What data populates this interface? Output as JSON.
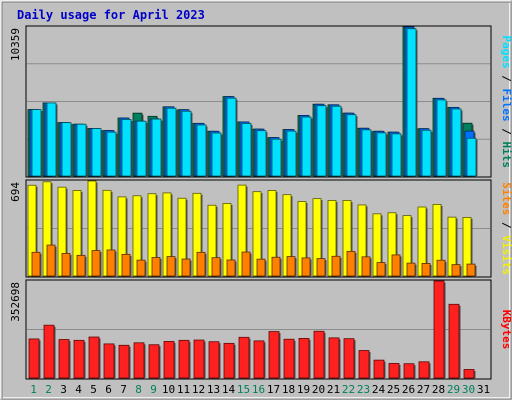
{
  "chart_data": {
    "type": "bar",
    "title": "Daily usage for April 2023",
    "days": [
      "1",
      "2",
      "3",
      "4",
      "5",
      "6",
      "7",
      "8",
      "9",
      "10",
      "11",
      "12",
      "13",
      "14",
      "15",
      "16",
      "17",
      "18",
      "19",
      "20",
      "21",
      "22",
      "23",
      "24",
      "25",
      "26",
      "27",
      "28",
      "29",
      "30",
      "31"
    ],
    "weekend_days": [
      "1",
      "2",
      "8",
      "9",
      "15",
      "16",
      "22",
      "23",
      "29",
      "30"
    ],
    "panels": [
      {
        "id": "hits-panel",
        "max_label": "10359",
        "ymax": 10359,
        "legend": [
          {
            "text": "Pages",
            "color": "#00e0ff"
          },
          {
            "text": " / ",
            "color": "#000000"
          },
          {
            "text": "Files",
            "color": "#0070ff"
          },
          {
            "text": " / ",
            "color": "#000000"
          },
          {
            "text": "Hits",
            "color": "#00805c"
          }
        ],
        "series": [
          {
            "name": "Hits",
            "color": "#00805c",
            "values": [
              4620,
              5080,
              3710,
              3600,
              3300,
              3160,
              4030,
              4370,
              4150,
              4810,
              4610,
              3660,
              3110,
              5520,
              3760,
              3260,
              2670,
              3230,
              4210,
              4990,
              4950,
              4370,
              3320,
              3110,
              3050,
              10359,
              3290,
              5400,
              4770,
              3670,
              null
            ]
          },
          {
            "name": "Files",
            "color": "#0070ff",
            "values": [
              4620,
              5080,
              3710,
              3600,
              3300,
              3160,
              4030,
              3810,
              3960,
              4810,
              4610,
              3660,
              3110,
              5520,
              3760,
              3260,
              2670,
              3230,
              4210,
              4990,
              4950,
              4370,
              3320,
              3110,
              3050,
              10359,
              3290,
              5400,
              4770,
              3120,
              null
            ]
          },
          {
            "name": "Pages",
            "color": "#00e0ff",
            "values": [
              4620,
              5080,
              3710,
              3600,
              3300,
              3050,
              3930,
              3810,
              3960,
              4710,
              4500,
              3550,
              2990,
              5410,
              3650,
              3150,
              2560,
              3120,
              4100,
              4890,
              4850,
              4260,
              3210,
              3000,
              2930,
              10240,
              3180,
              5290,
              4660,
              2620,
              null
            ]
          }
        ]
      },
      {
        "id": "visits-panel",
        "max_label": "694",
        "ymax": 694,
        "legend": [
          {
            "text": "Sites",
            "color": "#ff8000"
          },
          {
            "text": " / ",
            "color": "#000000"
          },
          {
            "text": "Visits",
            "color": "#f0f000"
          }
        ],
        "series": [
          {
            "name": "Visits",
            "color": "#ffff00",
            "values": [
              663,
              688,
              649,
              625,
              694,
              626,
              578,
              586,
              601,
              607,
              568,
              604,
              517,
              530,
              664,
              616,
              625,
              594,
              544,
              565,
              552,
              552,
              519,
              454,
              462,
              441,
              504,
              523,
              430,
              428,
              null
            ]
          },
          {
            "name": "Sites",
            "color": "#ff8000",
            "values": [
              173,
              226,
              165,
              151,
              186,
              190,
              158,
              116,
              135,
              142,
              124,
              173,
              134,
              117,
              175,
              123,
              137,
              142,
              132,
              127,
              144,
              180,
              140,
              98,
              154,
              94,
              92,
              115,
              83,
              87,
              null
            ]
          }
        ]
      },
      {
        "id": "kbytes-panel",
        "max_label": "352698",
        "ymax": 352698,
        "legend": [
          {
            "text": "KBytes",
            "color": "#ff0000"
          }
        ],
        "series": [
          {
            "name": "KBytes",
            "color": "#ff2020",
            "values": [
              142000,
              192000,
              140000,
              137000,
              149000,
              124000,
              119000,
              128000,
              121000,
              133000,
              137000,
              138000,
              132000,
              126000,
              148000,
              135000,
              169000,
              141000,
              144000,
              170000,
              146000,
              143000,
              100000,
              65000,
              53000,
              52000,
              59000,
              352698,
              268000,
              31000,
              null
            ]
          }
        ]
      }
    ]
  }
}
